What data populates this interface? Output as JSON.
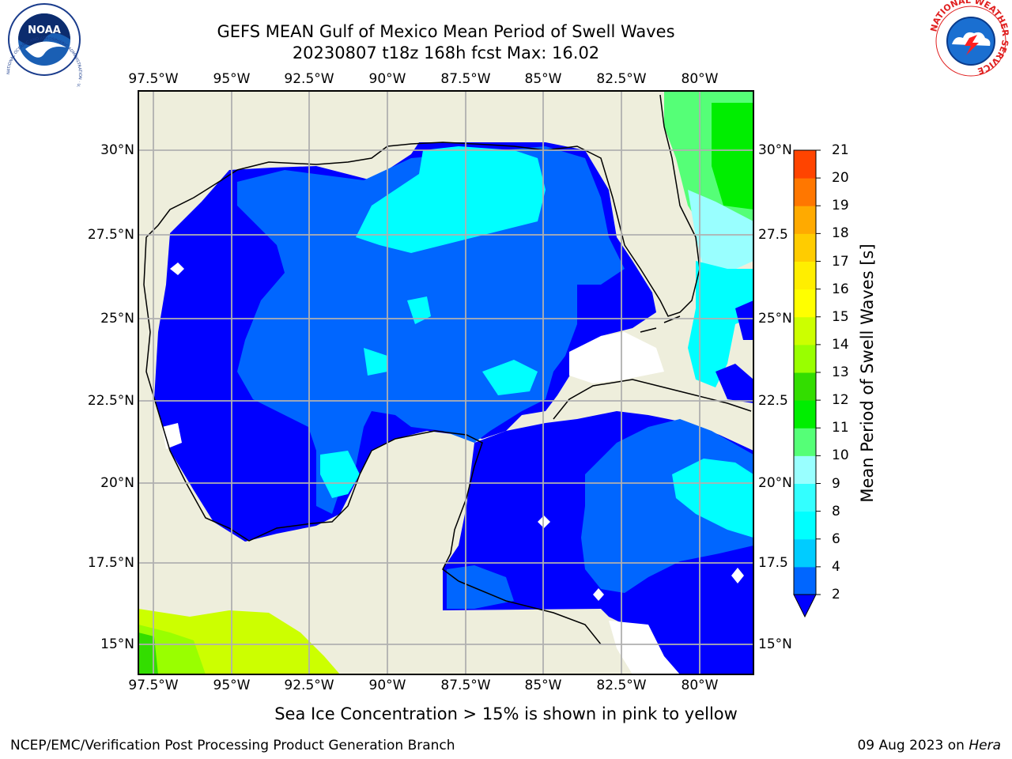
{
  "title_line1": "GEFS MEAN Gulf of Mexico Mean Period of Swell Waves",
  "title_line2": "20230807 t18z 168h fcst   Max: 16.02",
  "lon_labels": [
    "97.5°W",
    "95°W",
    "92.5°W",
    "90°W",
    "87.5°W",
    "85°W",
    "82.5°W",
    "80°W"
  ],
  "lat_labels": [
    "30°N",
    "27.5°N",
    "25°N",
    "22.5°N",
    "20°N",
    "17.5°N",
    "15°N"
  ],
  "lat_labels_right": [
    "30°N",
    "27.5",
    "25°N",
    "22.5",
    "20°N",
    "17.5",
    "15°N"
  ],
  "colorbar": {
    "label": "Mean Period of Swell Waves [s]",
    "ticks": [
      "2",
      "4",
      "6",
      "8",
      "9",
      "10",
      "11",
      "12",
      "13",
      "14",
      "15",
      "16",
      "17",
      "18",
      "19",
      "20",
      "21"
    ],
    "colors": [
      "#0066ff",
      "#00ccff",
      "#00ffff",
      "#33ffff",
      "#99ffff",
      "#55ff77",
      "#00ee00",
      "#33dd00",
      "#99ff00",
      "#ccff00",
      "#ffff00",
      "#ffee00",
      "#ffcc00",
      "#ffaa00",
      "#ff7700",
      "#ff4400",
      "#ff0000"
    ],
    "extend_color": "#0000ff"
  },
  "map_colors": {
    "land": "#eeeedc",
    "deep_blue": "#0000ff",
    "blue": "#0066ff",
    "cyan": "#00ffff",
    "light_cyan": "#99ffff",
    "green": "#00ee00",
    "light_green": "#55ff77",
    "yellow_green": "#ccff00",
    "grid": "#b0b0b0"
  },
  "note": "Sea Ice Concentration > 15% is shown in pink to yellow",
  "footer_left": "NCEP/EMC/Verification Post Processing Product Generation Branch",
  "footer_date": "09 Aug 2023 on ",
  "footer_machine": "Hera",
  "logos": {
    "noaa_text": "NOAA",
    "noaa_ring_text": "NATIONAL OCEANIC AND ATMOSPHERIC ADMINISTRATION · U.S. DEPARTMENT OF COMMERCE",
    "nws_ring_text": "NATIONAL WEATHER SERVICE"
  }
}
